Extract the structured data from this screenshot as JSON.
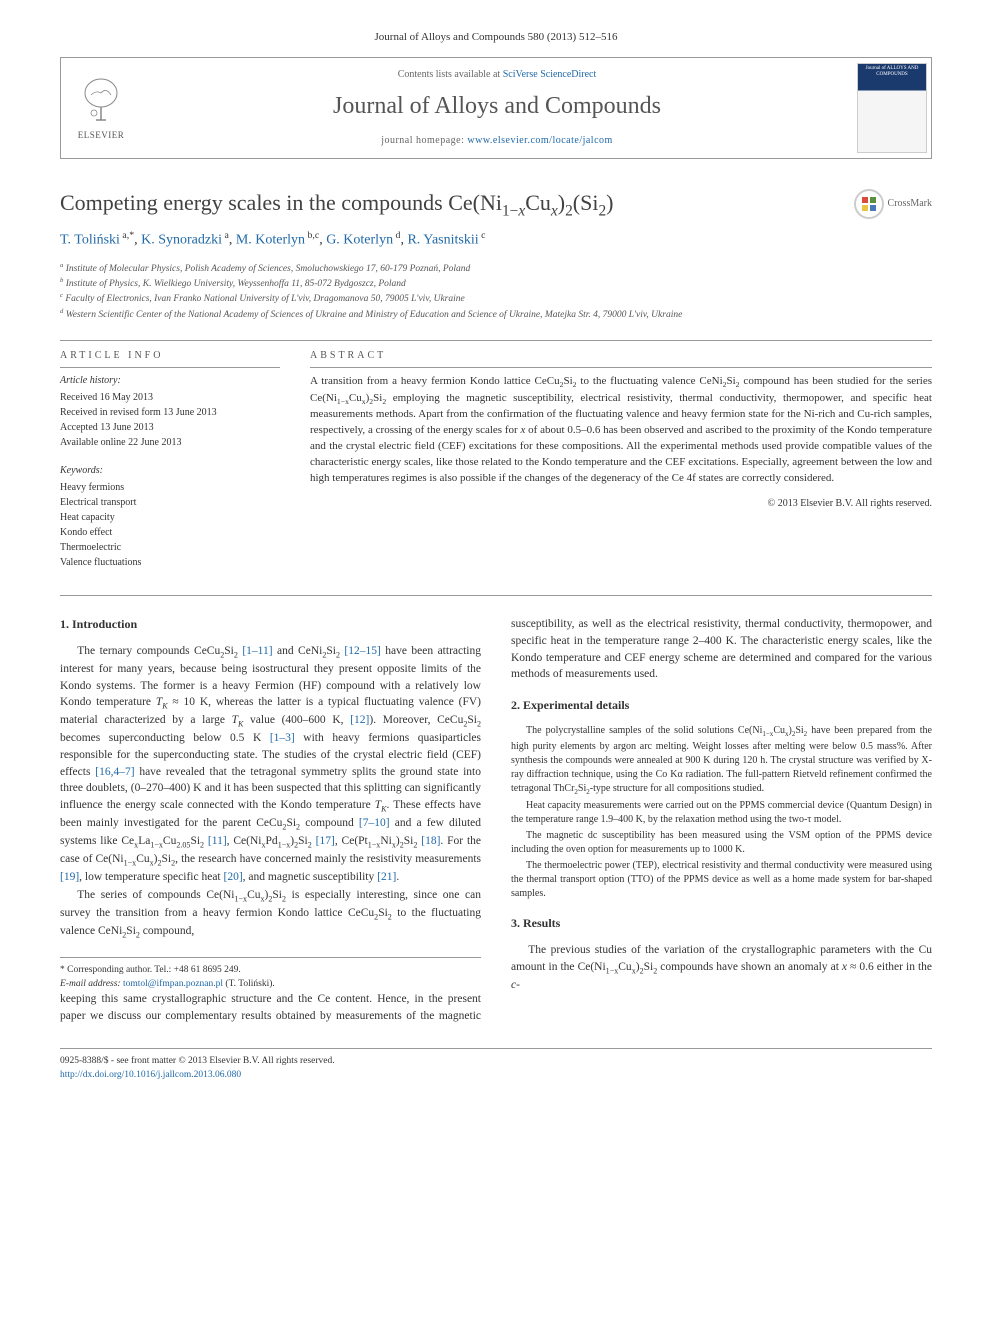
{
  "colors": {
    "text": "#333333",
    "link": "#2169a8",
    "muted": "#666666",
    "border": "#999999",
    "background": "#ffffff",
    "cover_blue": "#1a3a6e"
  },
  "typography": {
    "body_font": "Georgia, Times New Roman, serif",
    "title_size_pt": 22,
    "journal_name_size_pt": 24,
    "body_size_pt": 11.5,
    "small_size_pt": 10
  },
  "header": {
    "journal_ref": "Journal of Alloys and Compounds 580 (2013) 512–516",
    "contents_prefix": "Contents lists available at ",
    "contents_link": "SciVerse ScienceDirect",
    "journal_name": "Journal of Alloys and Compounds",
    "homepage_prefix": "journal homepage: ",
    "homepage_link": "www.elsevier.com/locate/jalcom",
    "publisher": "ELSEVIER",
    "cover_text": "Journal of ALLOYS AND COMPOUNDS"
  },
  "crossmark": "CrossMark",
  "article": {
    "title_html": "Competing energy scales in the compounds Ce(Ni<sub>1−<i>x</i></sub>Cu<sub><i>x</i></sub>)<sub>2</sub>(Si<sub>2</sub>)",
    "authors_html": "<a>T. Toliński</a><sup> a,*</sup>, <a>K. Synoradzki</a><sup> a</sup>, <a>M. Koterlyn</a><sup> b,c</sup>, <a>G. Koterlyn</a><sup> d</sup>, <a>R. Yasnitskii</a><sup> c</sup>",
    "affiliations": [
      "<sup>a</sup> Institute of Molecular Physics, Polish Academy of Sciences, Smoluchowskiego 17, 60-179 Poznań, Poland",
      "<sup>b</sup> Institute of Physics, K. Wielkiego University, Weyssenhoffa 11, 85-072 Bydgoszcz, Poland",
      "<sup>c</sup> Faculty of Electronics, Ivan Franko National University of L'viv, Dragomanova 50, 79005 L'viv, Ukraine",
      "<sup>d</sup> Western Scientific Center of the National Academy of Sciences of Ukraine and Ministry of Education and Science of Ukraine, Matejka Str. 4, 79000 L'viv, Ukraine"
    ]
  },
  "info": {
    "heading": "ARTICLE INFO",
    "history_heading": "Article history:",
    "history": [
      "Received 16 May 2013",
      "Received in revised form 13 June 2013",
      "Accepted 13 June 2013",
      "Available online 22 June 2013"
    ],
    "keywords_heading": "Keywords:",
    "keywords": [
      "Heavy fermions",
      "Electrical transport",
      "Heat capacity",
      "Kondo effect",
      "Thermoelectric",
      "Valence fluctuations"
    ]
  },
  "abstract": {
    "heading": "ABSTRACT",
    "text_html": "A transition from a heavy fermion Kondo lattice CeCu<sub>2</sub>Si<sub>2</sub> to the fluctuating valence CeNi<sub>2</sub>Si<sub>2</sub> compound has been studied for the series Ce(Ni<sub>1−x</sub>Cu<sub>x</sub>)<sub>2</sub>Si<sub>2</sub> employing the magnetic susceptibility, electrical resistivity, thermal conductivity, thermopower, and specific heat measurements methods. Apart from the confirmation of the fluctuating valence and heavy fermion state for the Ni-rich and Cu-rich samples, respectively, a crossing of the energy scales for <i>x</i> of about 0.5–0.6 has been observed and ascribed to the proximity of the Kondo temperature and the crystal electric field (CEF) excitations for these compositions. All the experimental methods used provide compatible values of the characteristic energy scales, like those related to the Kondo temperature and the CEF excitations. Especially, agreement between the low and high temperatures regimes is also possible if the changes of the degeneracy of the Ce 4f states are correctly considered.",
    "copyright": "© 2013 Elsevier B.V. All rights reserved."
  },
  "sections": {
    "intro_heading": "1. Introduction",
    "intro_p1_html": "The ternary compounds CeCu<sub>2</sub>Si<sub>2</sub> <a>[1–11]</a> and CeNi<sub>2</sub>Si<sub>2</sub> <a>[12–15]</a> have been attracting interest for many years, because being isostructural they present opposite limits of the Kondo systems. The former is a heavy Fermion (HF) compound with a relatively low Kondo temperature <i>T<sub>K</sub></i> ≈ 10 K, whereas the latter is a typical fluctuating valence (FV) material characterized by a large <i>T<sub>K</sub></i> value (400–600 K, <a>[12]</a>). Moreover, CeCu<sub>2</sub>Si<sub>2</sub> becomes superconducting below 0.5 K <a>[1–3]</a> with heavy fermions quasiparticles responsible for the superconducting state. The studies of the crystal electric field (CEF) effects <a>[16,4–7]</a> have revealed that the tetragonal symmetry splits the ground state into three doublets, (0–270–400) K and it has been suspected that this splitting can significantly influence the energy scale connected with the Kondo temperature <i>T<sub>K</sub></i>. These effects have been mainly investigated for the parent CeCu<sub>2</sub>Si<sub>2</sub> compound <a>[7–10]</a> and a few diluted systems like Ce<sub>x</sub>La<sub>1−x</sub>Cu<sub>2.05</sub>Si<sub>2</sub> <a>[11]</a>, Ce(Ni<sub>x</sub>Pd<sub>1−x</sub>)<sub>2</sub>Si<sub>2</sub> <a>[17]</a>, Ce(Pt<sub>1−x</sub>Ni<sub>x</sub>)<sub>2</sub>Si<sub>2</sub> <a>[18]</a>. For the case of Ce(Ni<sub>1−x</sub>Cu<sub>x</sub>)<sub>2</sub>Si<sub>2</sub>, the research have concerned mainly the resistivity measurements <a>[19]</a>, low temperature specific heat <a>[20]</a>, and magnetic susceptibility <a>[21]</a>.",
    "intro_p2_html": "The series of compounds Ce(Ni<sub>1−x</sub>Cu<sub>x</sub>)<sub>2</sub>Si<sub>2</sub> is especially interesting, since one can survey the transition from a heavy fermion Kondo lattice CeCu<sub>2</sub>Si<sub>2</sub> to the fluctuating valence CeNi<sub>2</sub>Si<sub>2</sub> compound,",
    "intro_p3_html": "keeping this same crystallographic structure and the Ce content. Hence, in the present paper we discuss our complementary results obtained by measurements of the magnetic susceptibility, as well as the electrical resistivity, thermal conductivity, thermopower, and specific heat in the temperature range 2–400 K. The characteristic energy scales, like the Kondo temperature and CEF energy scheme are determined and compared for the various methods of measurements used.",
    "exp_heading": "2. Experimental details",
    "exp_p1_html": "The polycrystalline samples of the solid solutions Ce(Ni<sub>1−x</sub>Cu<sub>x</sub>)<sub>2</sub>Si<sub>2</sub> have been prepared from the high purity elements by argon arc melting. Weight losses after melting were below 0.5 mass%. After synthesis the compounds were annealed at 900 K during 120 h. The crystal structure was verified by X-ray diffraction technique, using the Co Kα radiation. The full-pattern Rietveld refinement confirmed the tetragonal ThCr<sub>2</sub>Si<sub>2</sub>-type structure for all compositions studied.",
    "exp_p2_html": "Heat capacity measurements were carried out on the PPMS commercial device (Quantum Design) in the temperature range 1.9–400 K, by the relaxation method using the two-τ model.",
    "exp_p3_html": "The magnetic dc susceptibility has been measured using the VSM option of the PPMS device including the oven option for measurements up to 1000 K.",
    "exp_p4_html": "The thermoelectric power (TEP), electrical resistivity and thermal conductivity were measured using the thermal transport option (TTO) of the PPMS device as well as a home made system for bar-shaped samples.",
    "results_heading": "3. Results",
    "results_p1_html": "The previous studies of the variation of the crystallographic parameters with the Cu amount in the Ce(Ni<sub>1−x</sub>Cu<sub>x</sub>)<sub>2</sub>Si<sub>2</sub> compounds have shown an anomaly at <i>x</i> ≈ 0.6 either in the <i>c</i>-"
  },
  "footnote": {
    "corresponding": "* Corresponding author. Tel.: +48 61 8695 249.",
    "email_label": "E-mail address:",
    "email": "tomtol@ifmpan.poznan.pl",
    "email_name": "(T. Toliński)."
  },
  "footer": {
    "issn_line": "0925-8388/$ - see front matter © 2013 Elsevier B.V. All rights reserved.",
    "doi": "http://dx.doi.org/10.1016/j.jallcom.2013.06.080"
  }
}
